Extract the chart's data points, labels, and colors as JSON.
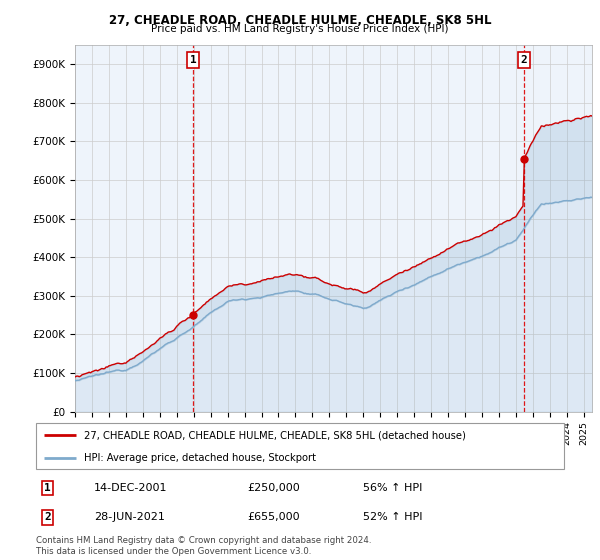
{
  "title_line1": "27, CHEADLE ROAD, CHEADLE HULME, CHEADLE, SK8 5HL",
  "title_line2": "Price paid vs. HM Land Registry's House Price Index (HPI)",
  "ylabel_ticks": [
    "£0",
    "£100K",
    "£200K",
    "£300K",
    "£400K",
    "£500K",
    "£600K",
    "£700K",
    "£800K",
    "£900K"
  ],
  "ytick_vals": [
    0,
    100000,
    200000,
    300000,
    400000,
    500000,
    600000,
    700000,
    800000,
    900000
  ],
  "ylim": [
    0,
    950000
  ],
  "xlim_start": 1995.0,
  "xlim_end": 2025.5,
  "sale1_x": 2001.96,
  "sale1_y": 250000,
  "sale2_x": 2021.49,
  "sale2_y": 655000,
  "vline1_x": 2001.96,
  "vline2_x": 2021.49,
  "legend_line1": "27, CHEADLE ROAD, CHEADLE HULME, CHEADLE, SK8 5HL (detached house)",
  "legend_line2": "HPI: Average price, detached house, Stockport",
  "note1_label": "1",
  "note1_date": "14-DEC-2001",
  "note1_price": "£250,000",
  "note1_hpi": "56% ↑ HPI",
  "note2_label": "2",
  "note2_date": "28-JUN-2021",
  "note2_price": "£655,000",
  "note2_hpi": "52% ↑ HPI",
  "footer": "Contains HM Land Registry data © Crown copyright and database right 2024.\nThis data is licensed under the Open Government Licence v3.0.",
  "red_line_color": "#cc0000",
  "blue_line_color": "#7faacc",
  "blue_fill_color": "#ddeeff",
  "vline_color": "#dd0000",
  "grid_color": "#cccccc",
  "background_color": "#ffffff",
  "plot_bg_color": "#eef4fb"
}
